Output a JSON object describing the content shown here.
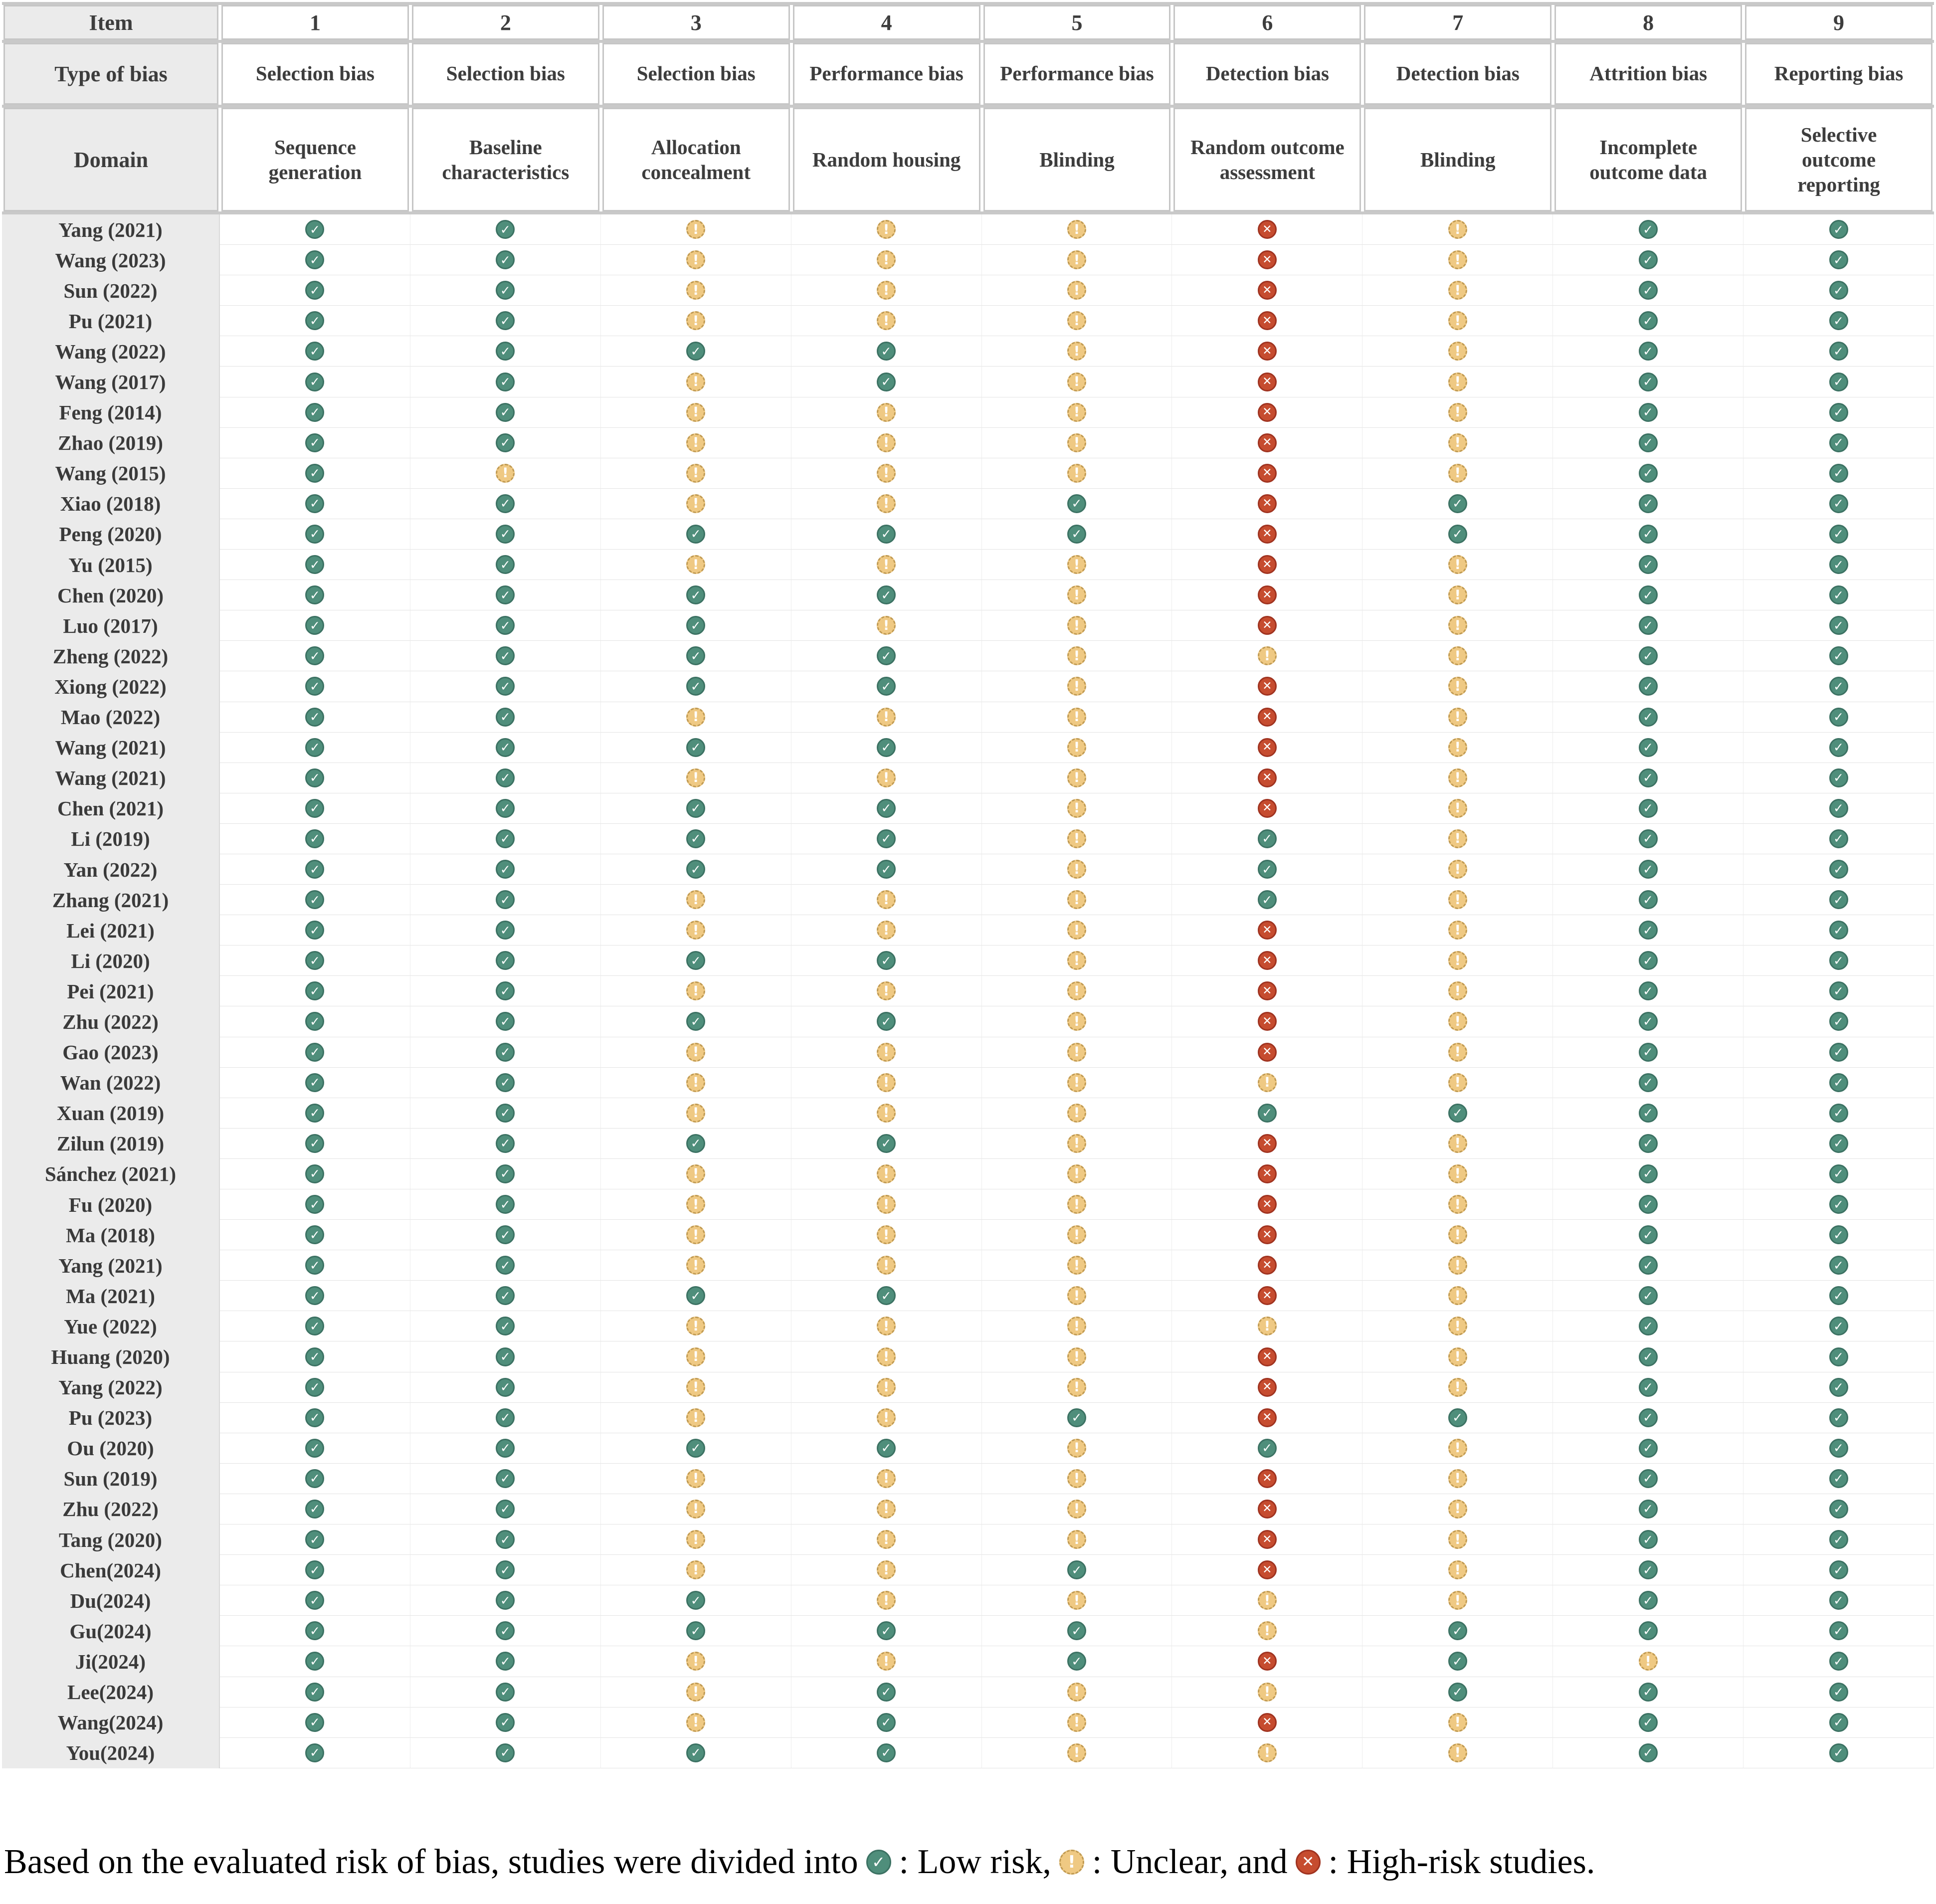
{
  "table": {
    "corner": {
      "item": "Item",
      "type_of_bias": "Type of bias",
      "domain": "Domain"
    },
    "columns": [
      {
        "item": "1",
        "type": "Selection bias",
        "domain": "Sequence generation"
      },
      {
        "item": "2",
        "type": "Selection bias",
        "domain": "Baseline characteristics"
      },
      {
        "item": "3",
        "type": "Selection bias",
        "domain": "Allocation concealment"
      },
      {
        "item": "4",
        "type": "Performance bias",
        "domain": "Random housing"
      },
      {
        "item": "5",
        "type": "Performance bias",
        "domain": "Blinding"
      },
      {
        "item": "6",
        "type": "Detection bias",
        "domain": "Random outcome assessment"
      },
      {
        "item": "7",
        "type": "Detection bias",
        "domain": "Blinding"
      },
      {
        "item": "8",
        "type": "Attrition bias",
        "domain": "Incomplete outcome data"
      },
      {
        "item": "9",
        "type": "Reporting bias",
        "domain": "Selective outcome reporting"
      }
    ],
    "icon_glyphs": {
      "low": "✓",
      "unclear": "!",
      "high": "✕"
    },
    "colors": {
      "low_fill": "#4F8E7B",
      "low_border": "#3C7263",
      "unclear_fill": "#EFC983",
      "unclear_border": "#C09A52",
      "high_fill": "#C64C2F",
      "high_border": "#A03320"
    },
    "rows": [
      {
        "study": "Yang (2021)",
        "ratings": [
          "low",
          "low",
          "unclear",
          "unclear",
          "unclear",
          "high",
          "unclear",
          "low",
          "low"
        ]
      },
      {
        "study": "Wang (2023)",
        "ratings": [
          "low",
          "low",
          "unclear",
          "unclear",
          "unclear",
          "high",
          "unclear",
          "low",
          "low"
        ]
      },
      {
        "study": "Sun (2022)",
        "ratings": [
          "low",
          "low",
          "unclear",
          "unclear",
          "unclear",
          "high",
          "unclear",
          "low",
          "low"
        ]
      },
      {
        "study": "Pu (2021)",
        "ratings": [
          "low",
          "low",
          "unclear",
          "unclear",
          "unclear",
          "high",
          "unclear",
          "low",
          "low"
        ]
      },
      {
        "study": "Wang (2022)",
        "ratings": [
          "low",
          "low",
          "low",
          "low",
          "unclear",
          "high",
          "unclear",
          "low",
          "low"
        ]
      },
      {
        "study": "Wang (2017)",
        "ratings": [
          "low",
          "low",
          "unclear",
          "low",
          "unclear",
          "high",
          "unclear",
          "low",
          "low"
        ]
      },
      {
        "study": "Feng (2014)",
        "ratings": [
          "low",
          "low",
          "unclear",
          "unclear",
          "unclear",
          "high",
          "unclear",
          "low",
          "low"
        ]
      },
      {
        "study": "Zhao (2019)",
        "ratings": [
          "low",
          "low",
          "unclear",
          "unclear",
          "unclear",
          "high",
          "unclear",
          "low",
          "low"
        ]
      },
      {
        "study": "Wang (2015)",
        "ratings": [
          "low",
          "unclear",
          "unclear",
          "unclear",
          "unclear",
          "high",
          "unclear",
          "low",
          "low"
        ]
      },
      {
        "study": "Xiao (2018)",
        "ratings": [
          "low",
          "low",
          "unclear",
          "unclear",
          "low",
          "high",
          "low",
          "low",
          "low"
        ]
      },
      {
        "study": "Peng (2020)",
        "ratings": [
          "low",
          "low",
          "low",
          "low",
          "low",
          "high",
          "low",
          "low",
          "low"
        ]
      },
      {
        "study": "Yu (2015)",
        "ratings": [
          "low",
          "low",
          "unclear",
          "unclear",
          "unclear",
          "high",
          "unclear",
          "low",
          "low"
        ]
      },
      {
        "study": "Chen (2020)",
        "ratings": [
          "low",
          "low",
          "low",
          "low",
          "unclear",
          "high",
          "unclear",
          "low",
          "low"
        ]
      },
      {
        "study": "Luo (2017)",
        "ratings": [
          "low",
          "low",
          "low",
          "unclear",
          "unclear",
          "high",
          "unclear",
          "low",
          "low"
        ]
      },
      {
        "study": "Zheng (2022)",
        "ratings": [
          "low",
          "low",
          "low",
          "low",
          "unclear",
          "unclear",
          "unclear",
          "low",
          "low"
        ]
      },
      {
        "study": "Xiong (2022)",
        "ratings": [
          "low",
          "low",
          "low",
          "low",
          "unclear",
          "high",
          "unclear",
          "low",
          "low"
        ]
      },
      {
        "study": "Mao (2022)",
        "ratings": [
          "low",
          "low",
          "unclear",
          "unclear",
          "unclear",
          "high",
          "unclear",
          "low",
          "low"
        ]
      },
      {
        "study": "Wang (2021)",
        "ratings": [
          "low",
          "low",
          "low",
          "low",
          "unclear",
          "high",
          "unclear",
          "low",
          "low"
        ]
      },
      {
        "study": "Wang (2021)",
        "ratings": [
          "low",
          "low",
          "unclear",
          "unclear",
          "unclear",
          "high",
          "unclear",
          "low",
          "low"
        ]
      },
      {
        "study": "Chen (2021)",
        "ratings": [
          "low",
          "low",
          "low",
          "low",
          "unclear",
          "high",
          "unclear",
          "low",
          "low"
        ]
      },
      {
        "study": "Li (2019)",
        "ratings": [
          "low",
          "low",
          "low",
          "low",
          "unclear",
          "low",
          "unclear",
          "low",
          "low"
        ]
      },
      {
        "study": "Yan (2022)",
        "ratings": [
          "low",
          "low",
          "low",
          "low",
          "unclear",
          "low",
          "unclear",
          "low",
          "low"
        ]
      },
      {
        "study": "Zhang (2021)",
        "ratings": [
          "low",
          "low",
          "unclear",
          "unclear",
          "unclear",
          "low",
          "unclear",
          "low",
          "low"
        ]
      },
      {
        "study": "Lei (2021)",
        "ratings": [
          "low",
          "low",
          "unclear",
          "unclear",
          "unclear",
          "high",
          "unclear",
          "low",
          "low"
        ]
      },
      {
        "study": "Li (2020)",
        "ratings": [
          "low",
          "low",
          "low",
          "low",
          "unclear",
          "high",
          "unclear",
          "low",
          "low"
        ]
      },
      {
        "study": "Pei (2021)",
        "ratings": [
          "low",
          "low",
          "unclear",
          "unclear",
          "unclear",
          "high",
          "unclear",
          "low",
          "low"
        ]
      },
      {
        "study": "Zhu (2022)",
        "ratings": [
          "low",
          "low",
          "low",
          "low",
          "unclear",
          "high",
          "unclear",
          "low",
          "low"
        ]
      },
      {
        "study": "Gao (2023)",
        "ratings": [
          "low",
          "low",
          "unclear",
          "unclear",
          "unclear",
          "high",
          "unclear",
          "low",
          "low"
        ]
      },
      {
        "study": "Wan (2022)",
        "ratings": [
          "low",
          "low",
          "unclear",
          "unclear",
          "unclear",
          "unclear",
          "unclear",
          "low",
          "low"
        ]
      },
      {
        "study": "Xuan (2019)",
        "ratings": [
          "low",
          "low",
          "unclear",
          "unclear",
          "unclear",
          "low",
          "low",
          "low",
          "low"
        ]
      },
      {
        "study": "Zilun (2019)",
        "ratings": [
          "low",
          "low",
          "low",
          "low",
          "unclear",
          "high",
          "unclear",
          "low",
          "low"
        ]
      },
      {
        "study": "Sánchez (2021)",
        "ratings": [
          "low",
          "low",
          "unclear",
          "unclear",
          "unclear",
          "high",
          "unclear",
          "low",
          "low"
        ]
      },
      {
        "study": "Fu (2020)",
        "ratings": [
          "low",
          "low",
          "unclear",
          "unclear",
          "unclear",
          "high",
          "unclear",
          "low",
          "low"
        ]
      },
      {
        "study": "Ma (2018)",
        "ratings": [
          "low",
          "low",
          "unclear",
          "unclear",
          "unclear",
          "high",
          "unclear",
          "low",
          "low"
        ]
      },
      {
        "study": "Yang (2021)",
        "ratings": [
          "low",
          "low",
          "unclear",
          "unclear",
          "unclear",
          "high",
          "unclear",
          "low",
          "low"
        ]
      },
      {
        "study": "Ma (2021)",
        "ratings": [
          "low",
          "low",
          "low",
          "low",
          "unclear",
          "high",
          "unclear",
          "low",
          "low"
        ]
      },
      {
        "study": "Yue (2022)",
        "ratings": [
          "low",
          "low",
          "unclear",
          "unclear",
          "unclear",
          "unclear",
          "unclear",
          "low",
          "low"
        ]
      },
      {
        "study": "Huang (2020)",
        "ratings": [
          "low",
          "low",
          "unclear",
          "unclear",
          "unclear",
          "high",
          "unclear",
          "low",
          "low"
        ]
      },
      {
        "study": "Yang (2022)",
        "ratings": [
          "low",
          "low",
          "unclear",
          "unclear",
          "unclear",
          "high",
          "unclear",
          "low",
          "low"
        ]
      },
      {
        "study": "Pu (2023)",
        "ratings": [
          "low",
          "low",
          "unclear",
          "unclear",
          "low",
          "high",
          "low",
          "low",
          "low"
        ]
      },
      {
        "study": "Ou (2020)",
        "ratings": [
          "low",
          "low",
          "low",
          "low",
          "unclear",
          "low",
          "unclear",
          "low",
          "low"
        ]
      },
      {
        "study": "Sun (2019)",
        "ratings": [
          "low",
          "low",
          "unclear",
          "unclear",
          "unclear",
          "high",
          "unclear",
          "low",
          "low"
        ]
      },
      {
        "study": "Zhu (2022)",
        "ratings": [
          "low",
          "low",
          "unclear",
          "unclear",
          "unclear",
          "high",
          "unclear",
          "low",
          "low"
        ]
      },
      {
        "study": "Tang (2020)",
        "ratings": [
          "low",
          "low",
          "unclear",
          "unclear",
          "unclear",
          "high",
          "unclear",
          "low",
          "low"
        ]
      },
      {
        "study": "Chen(2024)",
        "ratings": [
          "low",
          "low",
          "unclear",
          "unclear",
          "low",
          "high",
          "unclear",
          "low",
          "low"
        ]
      },
      {
        "study": "Du(2024)",
        "ratings": [
          "low",
          "low",
          "low",
          "unclear",
          "unclear",
          "unclear",
          "unclear",
          "low",
          "low"
        ]
      },
      {
        "study": "Gu(2024)",
        "ratings": [
          "low",
          "low",
          "low",
          "low",
          "low",
          "unclear",
          "low",
          "low",
          "low"
        ]
      },
      {
        "study": "Ji(2024)",
        "ratings": [
          "low",
          "low",
          "unclear",
          "unclear",
          "low",
          "high",
          "low",
          "unclear",
          "low"
        ]
      },
      {
        "study": "Lee(2024)",
        "ratings": [
          "low",
          "low",
          "unclear",
          "low",
          "unclear",
          "unclear",
          "low",
          "low",
          "low"
        ]
      },
      {
        "study": "Wang(2024)",
        "ratings": [
          "low",
          "low",
          "unclear",
          "low",
          "unclear",
          "high",
          "unclear",
          "low",
          "low"
        ]
      },
      {
        "study": "You(2024)",
        "ratings": [
          "low",
          "low",
          "low",
          "low",
          "unclear",
          "unclear",
          "unclear",
          "low",
          "low"
        ]
      }
    ]
  },
  "legend": {
    "prefix": "Based on the evaluated risk of bias, studies were divided into",
    "low_suffix": ": Low risk,",
    "unclear_suffix": ": Unclear, and",
    "high_suffix": ": High-risk studies."
  }
}
